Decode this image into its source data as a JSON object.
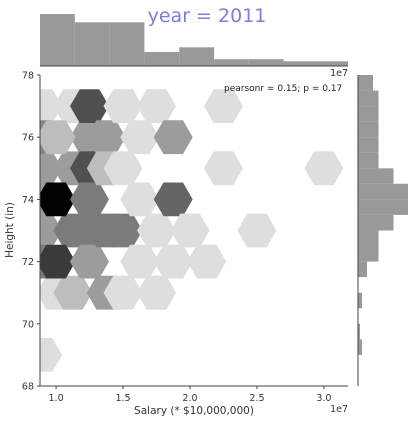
{
  "chart_data": {
    "type": "heatmap",
    "subtype": "hexbin jointplot with marginal histograms",
    "title": "year = 2011",
    "title_color": "#7b7fd8",
    "xlabel": "Salary (* $10,000,000)",
    "ylabel": "Height (in)",
    "x_offset_label": "1e7",
    "marginal_offset_label": "1e7",
    "annotation": "pearsonr = 0.15; p = 0.17",
    "xlim": [
      8800000,
      31800000
    ],
    "ylim": [
      68,
      78
    ],
    "x_ticks": [
      10000000,
      15000000,
      20000000,
      25000000,
      30000000
    ],
    "x_tick_labels": [
      "1.0",
      "1.5",
      "2.0",
      "2.5",
      "3.0"
    ],
    "y_ticks": [
      68,
      70,
      72,
      74,
      76,
      78
    ],
    "y_tick_labels": [
      "68",
      "70",
      "72",
      "74",
      "76",
      "78"
    ],
    "grid": false,
    "colors": {
      "hex_base": "#000000",
      "marginal_bar": "#999999",
      "axis": "#444444"
    },
    "hexbins": [
      {
        "x": 9000000,
        "y": 69.0,
        "level": 0.15
      },
      {
        "x": 10000000,
        "y": 71.0,
        "level": 0.15
      },
      {
        "x": 9000000,
        "y": 73.0,
        "level": 0.45
      },
      {
        "x": 9000000,
        "y": 75.0,
        "level": 0.45
      },
      {
        "x": 9000000,
        "y": 77.0,
        "level": 0.15
      },
      {
        "x": 9000000,
        "y": 76.0,
        "level": 0.55
      },
      {
        "x": 9000000,
        "y": 74.0,
        "level": 0.45
      },
      {
        "x": 9000000,
        "y": 72.0,
        "level": 0.6
      },
      {
        "x": 11250000,
        "y": 77.0,
        "level": 0.15
      },
      {
        "x": 11250000,
        "y": 75.0,
        "level": 0.45
      },
      {
        "x": 11250000,
        "y": 73.0,
        "level": 0.6
      },
      {
        "x": 11250000,
        "y": 71.0,
        "level": 0.3
      },
      {
        "x": 12500000,
        "y": 76.0,
        "level": 0.45
      },
      {
        "x": 10000000,
        "y": 76.0,
        "level": 0.3
      },
      {
        "x": 10000000,
        "y": 74.0,
        "level": 1.0
      },
      {
        "x": 10000000,
        "y": 72.0,
        "level": 0.9
      },
      {
        "x": 12500000,
        "y": 77.0,
        "level": 0.8
      },
      {
        "x": 12500000,
        "y": 75.0,
        "level": 0.8
      },
      {
        "x": 12500000,
        "y": 74.0,
        "level": 0.6
      },
      {
        "x": 12500000,
        "y": 73.0,
        "level": 0.6
      },
      {
        "x": 12500000,
        "y": 72.0,
        "level": 0.45
      },
      {
        "x": 13750000,
        "y": 76.0,
        "level": 0.45
      },
      {
        "x": 13750000,
        "y": 75.0,
        "level": 0.3
      },
      {
        "x": 13750000,
        "y": 73.0,
        "level": 0.6
      },
      {
        "x": 13750000,
        "y": 71.0,
        "level": 0.45
      },
      {
        "x": 15000000,
        "y": 77.0,
        "level": 0.15
      },
      {
        "x": 15000000,
        "y": 75.0,
        "level": 0.15
      },
      {
        "x": 15000000,
        "y": 73.0,
        "level": 0.6
      },
      {
        "x": 15000000,
        "y": 71.0,
        "level": 0.15
      },
      {
        "x": 16250000,
        "y": 76.0,
        "level": 0.15
      },
      {
        "x": 16250000,
        "y": 74.0,
        "level": 0.15
      },
      {
        "x": 16250000,
        "y": 72.0,
        "level": 0.15
      },
      {
        "x": 17500000,
        "y": 77.0,
        "level": 0.15
      },
      {
        "x": 17500000,
        "y": 73.0,
        "level": 0.15
      },
      {
        "x": 17500000,
        "y": 71.0,
        "level": 0.15
      },
      {
        "x": 18750000,
        "y": 76.0,
        "level": 0.45
      },
      {
        "x": 18750000,
        "y": 74.0,
        "level": 0.7
      },
      {
        "x": 18750000,
        "y": 72.0,
        "level": 0.15
      },
      {
        "x": 20000000,
        "y": 73.0,
        "level": 0.15
      },
      {
        "x": 21250000,
        "y": 72.0,
        "level": 0.15
      },
      {
        "x": 22500000,
        "y": 77.0,
        "level": 0.15
      },
      {
        "x": 22500000,
        "y": 75.0,
        "level": 0.15
      },
      {
        "x": 25000000,
        "y": 73.0,
        "level": 0.15
      },
      {
        "x": 30000000,
        "y": 75.0,
        "level": 0.15
      }
    ],
    "marginal_x": {
      "bin_edges": [
        8800000,
        11400000,
        14000000,
        16600000,
        19200000,
        21800000,
        24400000,
        27000000,
        29600000,
        31800000
      ],
      "heights": [
        1.0,
        0.84,
        0.84,
        0.27,
        0.36,
        0.13,
        0.13,
        0.09,
        0.09
      ]
    },
    "marginal_y": {
      "bin_edges": [
        68.0,
        68.5,
        69.0,
        69.5,
        70.0,
        70.5,
        71.0,
        71.5,
        72.0,
        72.5,
        73.0,
        73.5,
        74.0,
        74.5,
        75.0,
        75.5,
        76.0,
        76.5,
        77.0,
        77.5,
        78.0
      ],
      "heights": [
        0.0,
        0.0,
        0.08,
        0.04,
        0.0,
        0.08,
        0.0,
        0.18,
        0.41,
        0.41,
        0.71,
        1.0,
        1.0,
        0.71,
        0.41,
        0.41,
        0.41,
        0.41,
        0.41,
        0.3
      ]
    }
  }
}
